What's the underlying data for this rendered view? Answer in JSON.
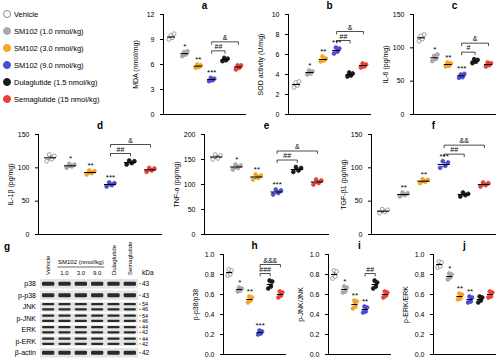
{
  "groups": [
    {
      "name": "Vehicle",
      "color": "#888888",
      "marker": "open"
    },
    {
      "name": "SM102 (1.0 nmol/kg)",
      "color": "#a9a9a9",
      "marker": "circle"
    },
    {
      "name": "SM102 (3.0 nmol/kg)",
      "color": "#f5a623",
      "marker": "circle"
    },
    {
      "name": "SM102 (9.0 nmol/kg)",
      "color": "#4b4bd6",
      "marker": "circle"
    },
    {
      "name": "Dulaglutide (1.5 nmol/kg)",
      "color": "#1a1a1a",
      "marker": "circle"
    },
    {
      "name": "Semaglutide (15 nmol/kg)",
      "color": "#e8413c",
      "marker": "circle"
    }
  ],
  "chart_data": [
    {
      "type": "scatter",
      "panel": "a",
      "y_label": "MDA (nmol/mg)",
      "ylim": [
        0,
        12
      ],
      "yticks": [
        0,
        3,
        6,
        9,
        12
      ],
      "means": [
        9.3,
        7.3,
        5.8,
        4.2,
        6.6,
        5.7
      ],
      "errors": [
        0.3,
        0.25,
        0.2,
        0.2,
        0.2,
        0.25
      ],
      "points": [
        [
          9.0,
          9.5,
          9.2,
          9.7
        ],
        [
          7.0,
          7.5,
          7.2,
          7.6
        ],
        [
          5.6,
          6.0,
          5.7,
          5.9
        ],
        [
          4.0,
          4.4,
          4.1,
          4.3
        ],
        [
          6.4,
          6.8,
          6.5,
          6.7
        ],
        [
          5.4,
          5.9,
          5.6,
          5.9
        ]
      ],
      "significance": [
        "",
        "*",
        "**",
        "***",
        "",
        ""
      ],
      "comparisons": [
        {
          "from": 3,
          "to": 4,
          "label": "##"
        },
        {
          "from": 3,
          "to": 5,
          "label": "&"
        }
      ]
    },
    {
      "type": "scatter",
      "panel": "b",
      "y_label": "SOD activity (U/mg)",
      "ylim": [
        0,
        10
      ],
      "yticks": [
        0,
        2,
        4,
        6,
        8,
        10
      ],
      "means": [
        3.0,
        4.2,
        5.5,
        6.4,
        4.0,
        4.9
      ],
      "errors": [
        0.2,
        0.2,
        0.2,
        0.25,
        0.2,
        0.15
      ],
      "points": [
        [
          2.7,
          3.2,
          2.9,
          3.3
        ],
        [
          4.0,
          4.4,
          4.1,
          4.3
        ],
        [
          5.3,
          5.8,
          5.4,
          5.6
        ],
        [
          6.1,
          6.7,
          6.3,
          6.6
        ],
        [
          3.8,
          4.2,
          3.9,
          4.1
        ],
        [
          4.7,
          5.1,
          4.8,
          5.0
        ]
      ],
      "significance": [
        "",
        "*",
        "**",
        "***",
        "",
        ""
      ],
      "comparisons": [
        {
          "from": 3,
          "to": 4,
          "label": "##"
        },
        {
          "from": 3,
          "to": 5,
          "label": "&"
        }
      ]
    },
    {
      "type": "scatter",
      "panel": "c",
      "y_label": "IL-6 (pg/mg)",
      "ylim": [
        0,
        150
      ],
      "yticks": [
        0,
        50,
        100,
        150
      ],
      "means": [
        115,
        85,
        75,
        58,
        80,
        75
      ],
      "errors": [
        3,
        3,
        2,
        2,
        2,
        2
      ],
      "points": [
        [
          110,
          118,
          113,
          120
        ],
        [
          80,
          88,
          83,
          90
        ],
        [
          72,
          78,
          73,
          77
        ],
        [
          55,
          60,
          56,
          61
        ],
        [
          77,
          83,
          79,
          82
        ],
        [
          72,
          78,
          74,
          77
        ]
      ],
      "significance": [
        "",
        "*",
        "**",
        "***",
        "",
        ""
      ],
      "comparisons": [
        {
          "from": 3,
          "to": 4,
          "label": "#"
        },
        {
          "from": 3,
          "to": 5,
          "label": "&"
        }
      ]
    },
    {
      "type": "scatter",
      "panel": "d",
      "y_label": "IL-1β (pg/mg)",
      "ylim": [
        0,
        150
      ],
      "yticks": [
        0,
        50,
        100,
        150
      ],
      "means": [
        115,
        103,
        93,
        75,
        108,
        97
      ],
      "errors": [
        3,
        2,
        2,
        2,
        2,
        2
      ],
      "points": [
        [
          110,
          120,
          113,
          118
        ],
        [
          100,
          106,
          102,
          105
        ],
        [
          90,
          96,
          92,
          95
        ],
        [
          72,
          78,
          74,
          77
        ],
        [
          105,
          111,
          107,
          110
        ],
        [
          94,
          100,
          96,
          99
        ]
      ],
      "significance": [
        "",
        "*",
        "**",
        "***",
        "",
        ""
      ],
      "comparisons": [
        {
          "from": 3,
          "to": 4,
          "label": "##"
        },
        {
          "from": 3,
          "to": 5,
          "label": "&"
        }
      ]
    },
    {
      "type": "scatter",
      "panel": "e",
      "y_label": "TNF-α (pg/mg)",
      "ylim": [
        0,
        200
      ],
      "yticks": [
        0,
        50,
        100,
        150,
        200
      ],
      "means": [
        155,
        135,
        115,
        85,
        130,
        105
      ],
      "errors": [
        3,
        3,
        3,
        3,
        3,
        3
      ],
      "points": [
        [
          150,
          160,
          152,
          158
        ],
        [
          130,
          140,
          133,
          138
        ],
        [
          110,
          120,
          113,
          118
        ],
        [
          80,
          90,
          83,
          88
        ],
        [
          125,
          135,
          128,
          133
        ],
        [
          100,
          110,
          103,
          108
        ]
      ],
      "significance": [
        "",
        "*",
        "**",
        "***",
        "",
        ""
      ],
      "comparisons": [
        {
          "from": 3,
          "to": 4,
          "label": "##"
        },
        {
          "from": 3,
          "to": 5,
          "label": "&"
        }
      ]
    },
    {
      "type": "scatter",
      "panel": "f",
      "y_label": "TGF-β1 (pg/mg)",
      "ylim": [
        0,
        150
      ],
      "yticks": [
        0,
        50,
        100,
        150
      ],
      "means": [
        35,
        60,
        80,
        105,
        60,
        75
      ],
      "errors": [
        2,
        2,
        2,
        3,
        2,
        2
      ],
      "points": [
        [
          32,
          38,
          34,
          37
        ],
        [
          57,
          63,
          59,
          62
        ],
        [
          77,
          83,
          79,
          82
        ],
        [
          100,
          110,
          103,
          108
        ],
        [
          57,
          63,
          59,
          61
        ],
        [
          72,
          78,
          74,
          77
        ]
      ],
      "significance": [
        "",
        "**",
        "**",
        "***",
        "",
        ""
      ],
      "comparisons": [
        {
          "from": 3,
          "to": 4,
          "label": "##"
        },
        {
          "from": 3,
          "to": 5,
          "label": "&&"
        }
      ]
    },
    {
      "type": "scatter",
      "panel": "h",
      "y_label": "p-p38/p38",
      "ylim": [
        0,
        1
      ],
      "yticks": [
        {
          "value": 0,
          "label": "0.0"
        },
        0.2,
        0.4,
        0.6,
        0.8,
        {
          "value": 1,
          "label": "1.0"
        }
      ],
      "means": [
        0.82,
        0.65,
        0.55,
        0.22,
        0.7,
        0.6
      ],
      "errors": [
        0.02,
        0.02,
        0.02,
        0.02,
        0.02,
        0.02
      ],
      "points": [
        [
          0.79,
          0.85,
          0.8,
          0.84
        ],
        [
          0.63,
          0.67,
          0.64,
          0.66
        ],
        [
          0.52,
          0.58,
          0.54,
          0.57
        ],
        [
          0.2,
          0.24,
          0.21,
          0.23
        ],
        [
          0.66,
          0.74,
          0.68,
          0.73
        ],
        [
          0.57,
          0.63,
          0.59,
          0.62
        ]
      ],
      "significance": [
        "",
        "*",
        "**",
        "***",
        "",
        ""
      ],
      "comparisons": [
        {
          "from": 3,
          "to": 4,
          "label": "###"
        },
        {
          "from": 3,
          "to": 5,
          "label": "&&&"
        }
      ]
    },
    {
      "type": "scatter",
      "panel": "i",
      "y_label": "p-JNK/JNK",
      "ylim": [
        0,
        1
      ],
      "yticks": [
        {
          "value": 0,
          "label": "0.0"
        },
        0.2,
        0.4,
        0.6,
        0.8,
        {
          "value": 1,
          "label": "1.0"
        }
      ],
      "means": [
        0.8,
        0.65,
        0.5,
        0.45,
        0.7,
        0.6
      ],
      "errors": [
        0.02,
        0.02,
        0.02,
        0.02,
        0.02,
        0.02
      ],
      "points": [
        [
          0.76,
          0.84,
          0.78,
          0.83
        ],
        [
          0.62,
          0.68,
          0.63,
          0.67
        ],
        [
          0.46,
          0.54,
          0.48,
          0.53
        ],
        [
          0.42,
          0.48,
          0.43,
          0.47
        ],
        [
          0.66,
          0.74,
          0.68,
          0.72
        ],
        [
          0.57,
          0.63,
          0.59,
          0.62
        ]
      ],
      "significance": [
        "",
        "*",
        "**",
        "**",
        "",
        ""
      ],
      "comparisons": [
        {
          "from": 3,
          "to": 4,
          "label": "##"
        }
      ]
    },
    {
      "type": "scatter",
      "panel": "j",
      "y_label": "p-ERK/ERK",
      "ylim": [
        0,
        1
      ],
      "yticks": [
        {
          "value": 0,
          "label": "0.0"
        },
        0.2,
        0.4,
        0.6,
        0.8,
        {
          "value": 1,
          "label": "1.0"
        }
      ],
      "means": [
        0.9,
        0.78,
        0.58,
        0.55,
        0.55,
        0.6
      ],
      "errors": [
        0.02,
        0.02,
        0.02,
        0.02,
        0.02,
        0.02
      ],
      "points": [
        [
          0.87,
          0.93,
          0.88,
          0.92
        ],
        [
          0.75,
          0.81,
          0.77,
          0.8
        ],
        [
          0.55,
          0.61,
          0.56,
          0.6
        ],
        [
          0.52,
          0.58,
          0.53,
          0.57
        ],
        [
          0.52,
          0.58,
          0.54,
          0.57
        ],
        [
          0.57,
          0.63,
          0.58,
          0.62
        ]
      ],
      "significance": [
        "",
        "*",
        "**",
        "**",
        "",
        ""
      ],
      "comparisons": []
    }
  ],
  "blot": {
    "panel": "g",
    "group_label": "SM102 (nmol/kg)",
    "lanes": [
      "Vehicle",
      "1.0",
      "3.0",
      "9.0",
      "Dulaglutide",
      "Semaglutide"
    ],
    "grouped_lanes": [
      1,
      2,
      3
    ],
    "unit": "kDa",
    "rows": [
      {
        "name": "p38",
        "kda": [
          "43"
        ]
      },
      {
        "name": "p-p38",
        "kda": [
          "43"
        ]
      },
      {
        "name": "JNK",
        "kda": [
          "54",
          "46"
        ]
      },
      {
        "name": "p-JNK",
        "kda": [
          "54",
          "46"
        ]
      },
      {
        "name": "ERK",
        "kda": [
          "44",
          "42"
        ]
      },
      {
        "name": "p-ERK",
        "kda": [
          "44",
          "42"
        ]
      },
      {
        "name": "β-actin",
        "kda": [
          "42"
        ]
      }
    ]
  }
}
